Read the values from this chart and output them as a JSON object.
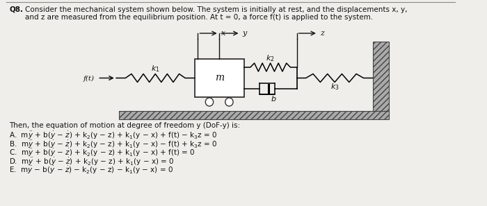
{
  "bg_color": "#f0eeea",
  "text_color": "#111111",
  "header_q": "Q8.",
  "header1": "Consider the mechanical system shown below. The system is initially at rest, and the displacements x, y,",
  "header2": "and z are measured from the equilibrium position. At t = 0, a force f(t) is applied to the system.",
  "intro_text": "Then, the equation of motion at degree of freedom y (DoF-y) is:",
  "answers_A": "A.  mῳ + b(ẟ − ż) + k₂(y − z) + k₁(y − x) + f(t) − k₃z = 0",
  "answers_B": "B.  mῳ + b(ẟ − ż) + k₂(y − z) + k₁(y − x) − f(t) + k₃z = 0",
  "answers_C": "C.  mῳ + b(ẟ − ż) + k₂(y − z) + k₁(y − x) + f(t) = 0",
  "answers_D": "D.  mῳ + b(ẟ − ż) + k₂(y − z) + k₁(y − x) = 0",
  "answers_E": "E.  mῳ − b(ẟ − ż) − k₂(y − z) − k₁(y − x) = 0"
}
